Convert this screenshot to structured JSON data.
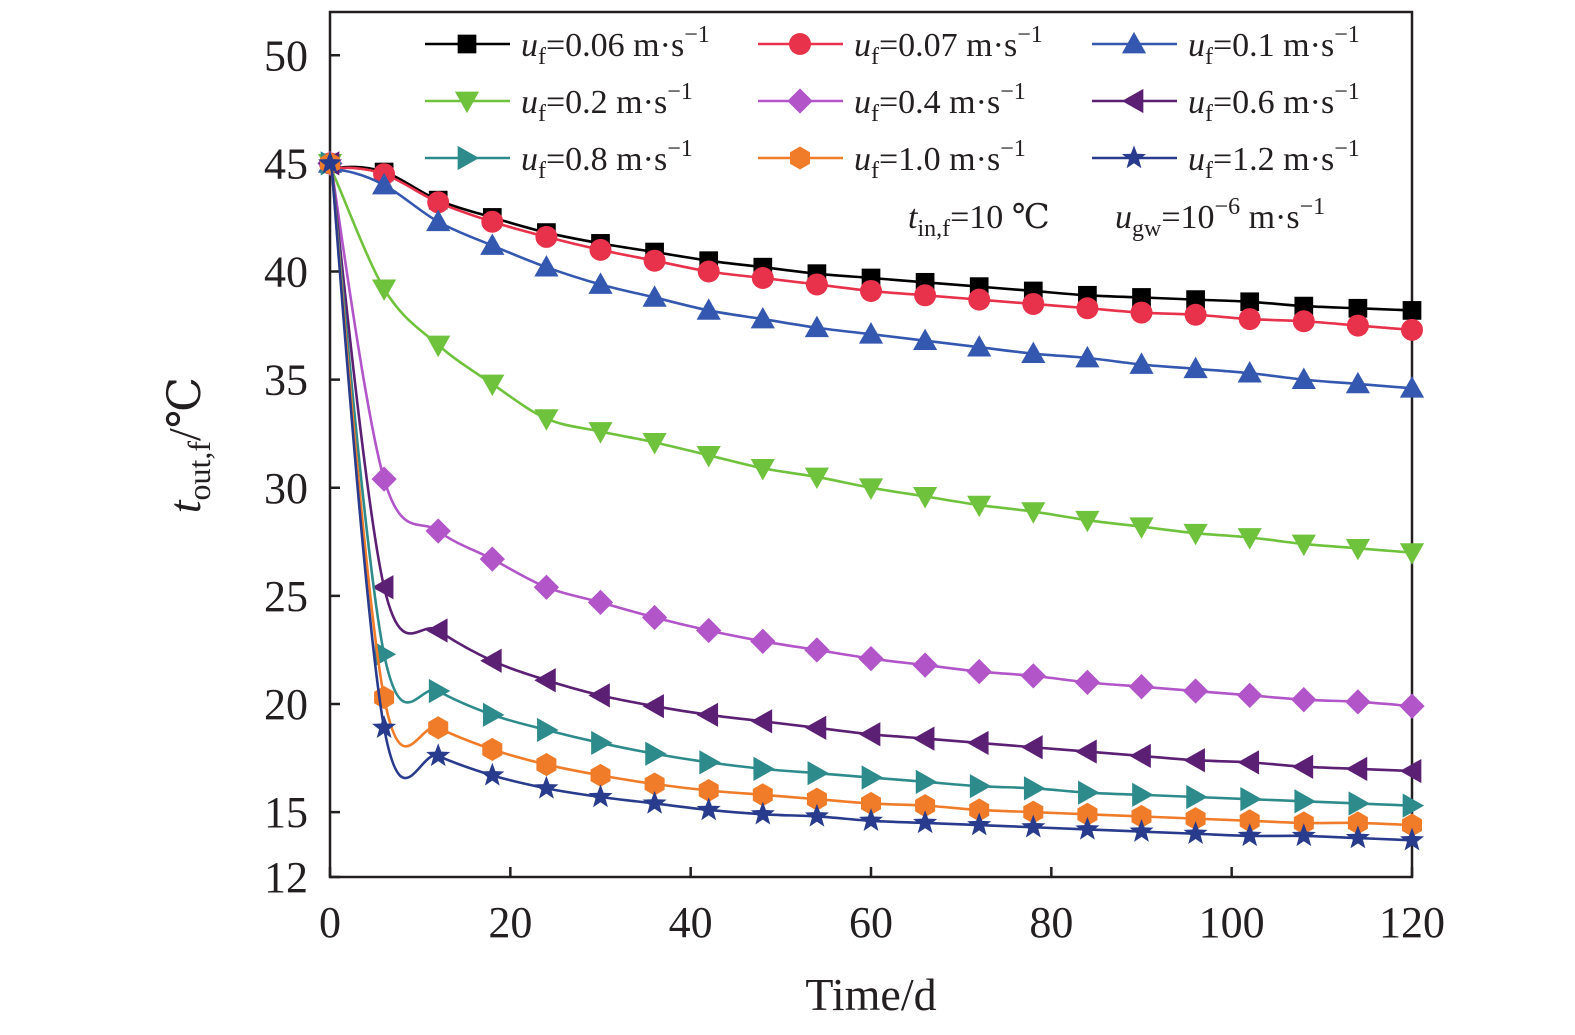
{
  "chart_data": {
    "type": "line",
    "xlabel": "Time/d",
    "ylabel": {
      "base": "t",
      "sub": "out,f",
      "unit": "/℃"
    },
    "xlim": [
      0,
      120
    ],
    "ylim": [
      12,
      52
    ],
    "xticks": [
      0,
      20,
      40,
      60,
      80,
      100,
      120
    ],
    "yticks": [
      12,
      15,
      20,
      25,
      30,
      35,
      40,
      45,
      50
    ],
    "grid": false,
    "legend_position": "top-right",
    "legend_columns": 3,
    "annotation": {
      "parts": [
        {
          "base": "t",
          "sub": "in,f",
          "text": "=10 ℃"
        },
        {
          "base": "u",
          "sub": "gw",
          "text": "=10",
          "sup": "−6",
          "tail": " m·s",
          "tail_sup": "−1"
        }
      ]
    },
    "x": [
      0,
      6,
      12,
      18,
      24,
      30,
      36,
      42,
      48,
      54,
      60,
      66,
      72,
      78,
      84,
      90,
      96,
      102,
      108,
      114,
      120
    ],
    "series": [
      {
        "name": "uf=0.06 m·s−1",
        "label_value": "=0.06 m·s",
        "marker": "square",
        "color": "#000000",
        "values": [
          45.0,
          44.6,
          43.3,
          42.5,
          41.8,
          41.3,
          40.9,
          40.5,
          40.2,
          39.9,
          39.7,
          39.5,
          39.3,
          39.1,
          38.9,
          38.8,
          38.7,
          38.6,
          38.4,
          38.3,
          38.2
        ]
      },
      {
        "name": "uf=0.07 m·s−1",
        "label_value": "=0.07 m·s",
        "marker": "circle",
        "color": "#e8314a",
        "values": [
          45.0,
          44.5,
          43.2,
          42.3,
          41.6,
          41.0,
          40.5,
          40.0,
          39.7,
          39.4,
          39.1,
          38.9,
          38.7,
          38.5,
          38.3,
          38.1,
          38.0,
          37.8,
          37.7,
          37.5,
          37.3
        ]
      },
      {
        "name": "uf=0.1 m·s−1",
        "label_value": "=0.1 m·s",
        "marker": "triangle-up",
        "color": "#3458b0",
        "values": [
          45.0,
          44.0,
          42.3,
          41.2,
          40.2,
          39.4,
          38.8,
          38.2,
          37.8,
          37.4,
          37.1,
          36.8,
          36.5,
          36.2,
          36.0,
          35.7,
          35.5,
          35.3,
          35.0,
          34.8,
          34.6
        ]
      },
      {
        "name": "uf=0.2 m·s−1",
        "label_value": "=0.2 m·s",
        "marker": "triangle-down",
        "color": "#6fc23c",
        "values": [
          45.0,
          39.2,
          36.6,
          34.8,
          33.2,
          32.6,
          32.1,
          31.5,
          30.9,
          30.5,
          30.0,
          29.6,
          29.2,
          28.9,
          28.5,
          28.2,
          27.9,
          27.7,
          27.4,
          27.2,
          27.0
        ]
      },
      {
        "name": "uf=0.4 m·s−1",
        "label_value": "=0.4 m·s",
        "marker": "diamond",
        "color": "#b155c9",
        "values": [
          45.0,
          30.4,
          28.0,
          26.7,
          25.4,
          24.7,
          24.0,
          23.4,
          22.9,
          22.5,
          22.1,
          21.8,
          21.5,
          21.3,
          21.0,
          20.8,
          20.6,
          20.4,
          20.2,
          20.1,
          19.9
        ]
      },
      {
        "name": "uf=0.6 m·s−1",
        "label_value": "=0.6 m·s",
        "marker": "triangle-left",
        "color": "#5b1f73",
        "values": [
          45.0,
          25.4,
          23.4,
          22.0,
          21.1,
          20.4,
          19.9,
          19.5,
          19.2,
          18.9,
          18.6,
          18.4,
          18.2,
          18.0,
          17.8,
          17.6,
          17.4,
          17.3,
          17.1,
          17.0,
          16.9
        ]
      },
      {
        "name": "uf=0.8 m·s−1",
        "label_value": "=0.8 m·s",
        "marker": "triangle-right",
        "color": "#2e8b8b",
        "values": [
          45.0,
          22.3,
          20.6,
          19.5,
          18.8,
          18.2,
          17.7,
          17.3,
          17.0,
          16.8,
          16.6,
          16.4,
          16.2,
          16.1,
          15.9,
          15.8,
          15.7,
          15.6,
          15.5,
          15.4,
          15.3
        ]
      },
      {
        "name": "uf=1.0 m·s−1",
        "label_value": "=1.0 m·s",
        "marker": "hexagon",
        "color": "#f07c2a",
        "values": [
          45.0,
          20.3,
          18.9,
          17.9,
          17.2,
          16.7,
          16.3,
          16.0,
          15.8,
          15.6,
          15.4,
          15.3,
          15.1,
          15.0,
          14.9,
          14.8,
          14.7,
          14.6,
          14.5,
          14.5,
          14.4
        ]
      },
      {
        "name": "uf=1.2 m·s−1",
        "label_value": "=1.2 m·s",
        "marker": "star",
        "color": "#283b8c",
        "values": [
          45.0,
          18.9,
          17.6,
          16.7,
          16.1,
          15.7,
          15.4,
          15.1,
          14.9,
          14.8,
          14.6,
          14.5,
          14.4,
          14.3,
          14.2,
          14.1,
          14.0,
          13.9,
          13.9,
          13.8,
          13.7
        ]
      }
    ]
  }
}
